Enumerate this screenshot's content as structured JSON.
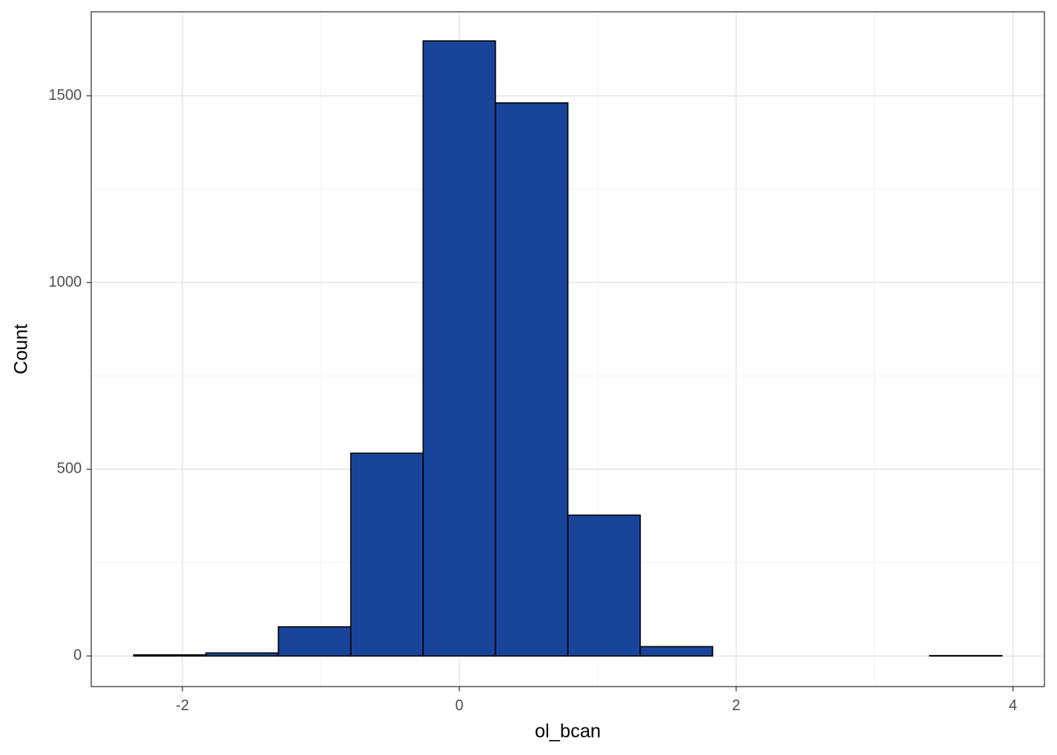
{
  "chart_data": {
    "type": "histogram",
    "x_label": "ol_bcan",
    "y_label": "Count",
    "bins": [
      -2.352,
      -1.83,
      -1.307,
      -0.784,
      -0.261,
      0.261,
      0.784,
      1.307,
      1.83,
      2.352,
      2.875,
      3.398,
      3.92
    ],
    "counts": [
      3,
      8,
      78,
      543,
      1647,
      1481,
      377,
      25,
      0,
      0,
      0,
      1
    ],
    "color": "#18449a",
    "edge_color": "#000000",
    "xlim": [
      -2.659,
      4.227
    ],
    "xticks": [
      -2,
      0,
      2,
      4
    ],
    "ylim": [
      -82,
      1725
    ],
    "yticks": [
      0,
      500,
      1000,
      1500
    ],
    "x_minor_grid": [
      -1,
      1,
      3
    ],
    "y_minor_grid": [
      250,
      750,
      1250
    ],
    "grid": true
  }
}
